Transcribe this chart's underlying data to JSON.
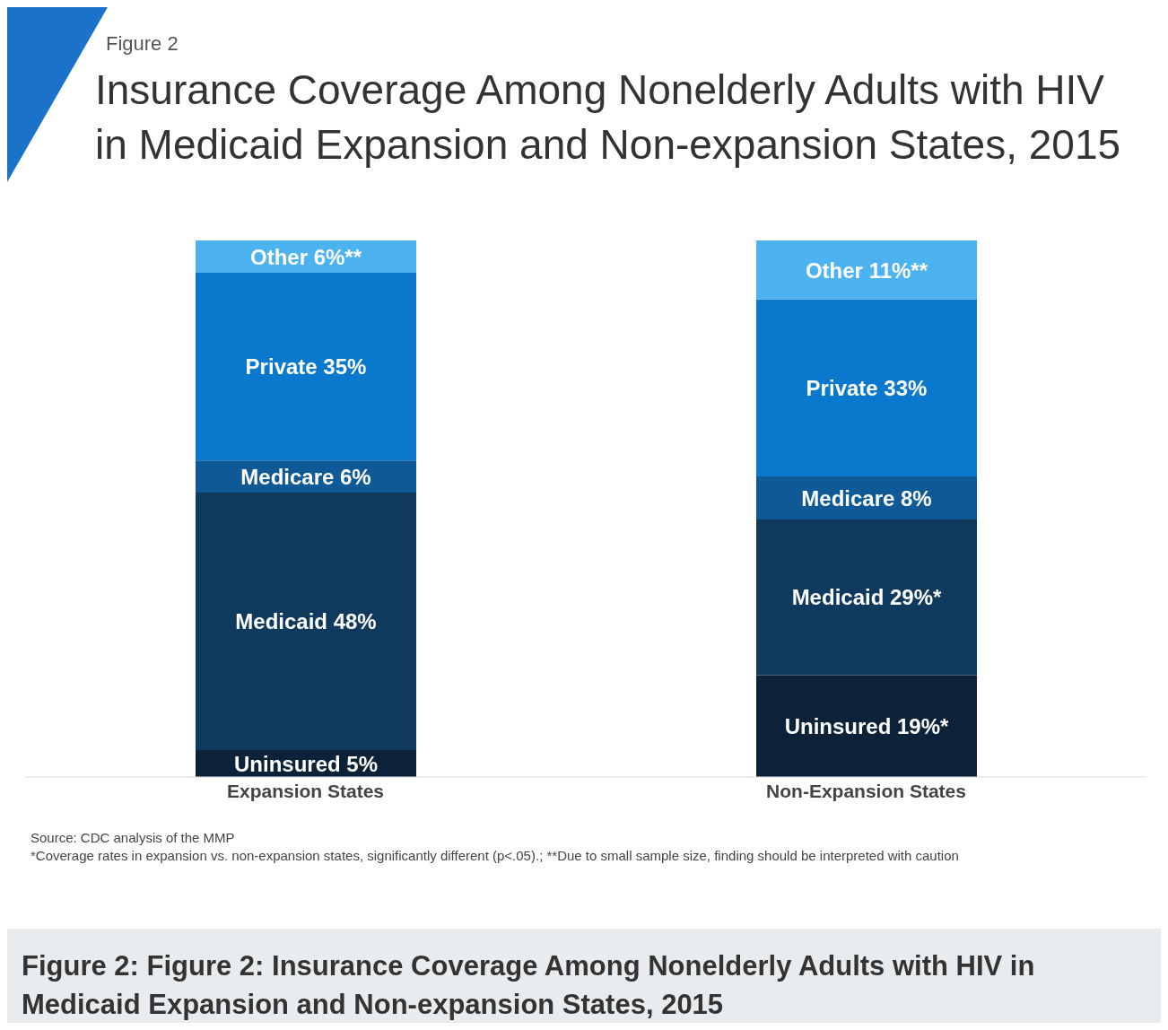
{
  "chart_data": {
    "type": "bar",
    "stacked": true,
    "title": "Insurance Coverage Among Nonelderly Adults with HIV in Medicaid Expansion and Non-expansion States, 2015",
    "categories": [
      "Expansion States",
      "Non-Expansion States"
    ],
    "series": [
      {
        "color": "#0c2238",
        "values": [
          5,
          19
        ],
        "value_labels": [
          "Uninsured 5%",
          "Uninsured 19%*"
        ]
      },
      {
        "color": "#0f3a5e",
        "values": [
          48,
          29
        ],
        "value_labels": [
          "Medicaid 48%",
          "Medicaid 29%*"
        ]
      },
      {
        "color": "#0f5a96",
        "values": [
          6,
          8
        ],
        "value_labels": [
          "Medicare 6%",
          "Medicare 8%"
        ]
      },
      {
        "color": "#0a78cc",
        "values": [
          35,
          33
        ],
        "value_labels": [
          "Private 35%",
          "Private 33%"
        ]
      },
      {
        "color": "#4db2f0",
        "values": [
          6,
          11
        ],
        "value_labels": [
          "Other 6%**",
          "Other 11%**"
        ]
      }
    ],
    "annotations": [
      "Figure 2",
      "Source: CDC analysis of the MMP",
      "*Coverage rates in expansion vs. non-expansion states, significantly different (p<.05).; **Due to small sample size, finding should be interpreted with caution",
      "Figure 2: Figure 2: Insurance Coverage Among Nonelderly Adults with HIV in Medicaid Expansion and Non-expansion States, 2015"
    ],
    "grid": false,
    "legend": false
  }
}
